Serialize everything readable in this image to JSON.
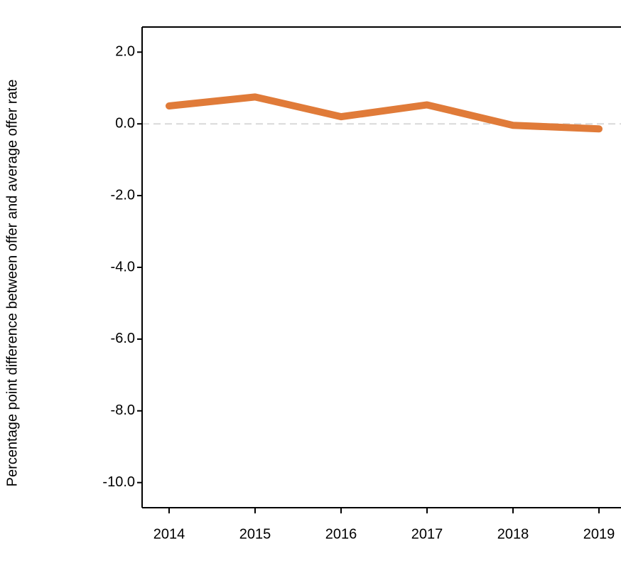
{
  "chart_data": {
    "type": "line",
    "y_label": "Percentage point difference between offer and average offer rate",
    "categories": [
      "2014",
      "2015",
      "2016",
      "2017",
      "2018",
      "2019"
    ],
    "series": [
      {
        "name": null,
        "color": "#e07b39",
        "values": [
          0.5,
          0.75,
          0.2,
          0.53,
          -0.04,
          -0.14
        ]
      }
    ],
    "ylim": [
      -10.7,
      2.7
    ],
    "yticks": [
      {
        "value": 2,
        "label": "2.0"
      },
      {
        "value": 0,
        "label": "0.0"
      },
      {
        "value": -2,
        "label": "-2.0"
      },
      {
        "value": -4,
        "label": "-4.0"
      },
      {
        "value": -6,
        "label": "-6.0"
      },
      {
        "value": -8,
        "label": "-8.0"
      },
      {
        "value": -10,
        "label": "-10.0"
      }
    ],
    "zero_line": true
  }
}
